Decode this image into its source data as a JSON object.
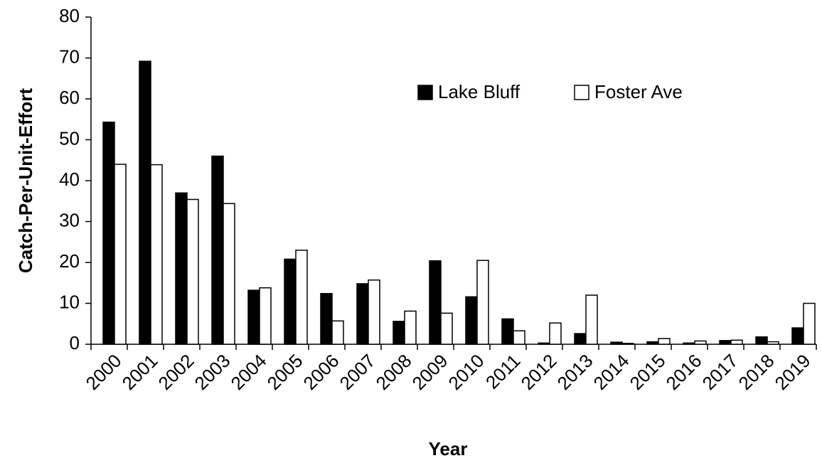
{
  "chart_data": {
    "type": "bar",
    "x_label": "Year",
    "y_label": "Catch-Per-Unit-Effort",
    "categories": [
      "2000",
      "2001",
      "2002",
      "2003",
      "2004",
      "2005",
      "2006",
      "2007",
      "2008",
      "2009",
      "2010",
      "2011",
      "2012",
      "2013",
      "2014",
      "2015",
      "2016",
      "2017",
      "2018",
      "2019"
    ],
    "series": [
      {
        "name": "Lake Bluff",
        "color": "#000000",
        "values": [
          54.3,
          69.2,
          37,
          46,
          13.2,
          20.8,
          12.4,
          14.8,
          5.6,
          20.4,
          11.6,
          6.2,
          0.3,
          2.6,
          0.5,
          0.6,
          0.3,
          0.9,
          1.8,
          4.0
        ]
      },
      {
        "name": "Foster Ave",
        "color": "#ffffff",
        "values": [
          44,
          43.9,
          35.4,
          34.4,
          13.8,
          23,
          5.7,
          15.7,
          8.1,
          7.6,
          20.5,
          3.3,
          5.2,
          12,
          0.2,
          1.4,
          0.8,
          1.0,
          0.6,
          10
        ]
      }
    ],
    "ylim": [
      0,
      80
    ],
    "yticks": [
      0,
      10,
      20,
      30,
      40,
      50,
      60,
      70,
      80
    ],
    "grid": false,
    "legend": "top-right"
  }
}
